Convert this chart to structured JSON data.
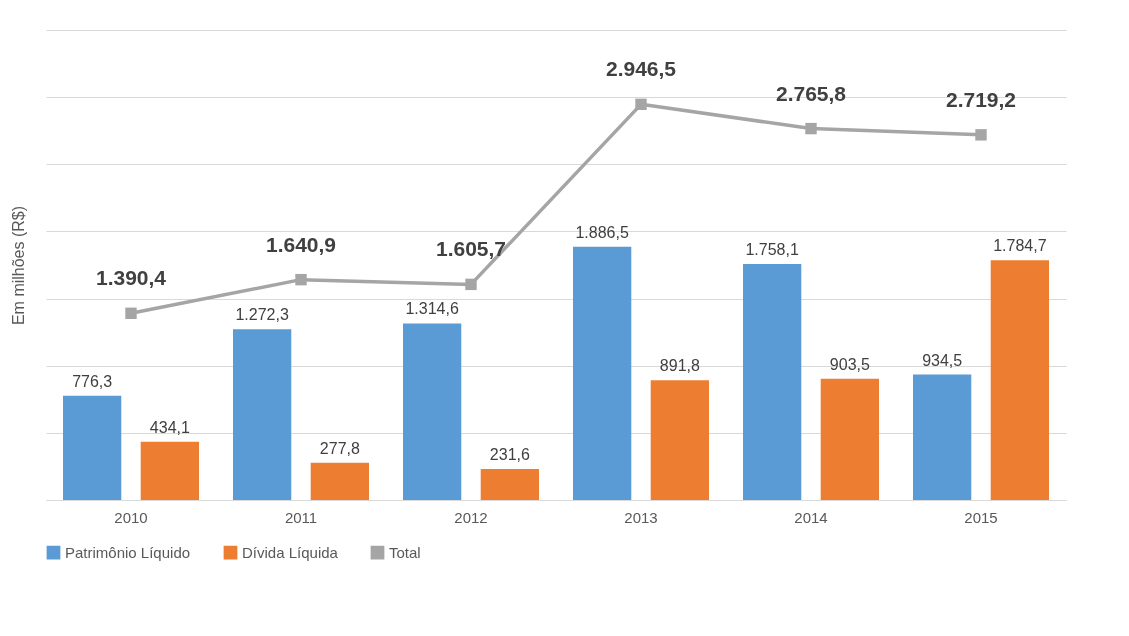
{
  "chart_data": {
    "type": "bar",
    "ylabel": "Em milhões (R$)",
    "categories": [
      "2010",
      "2011",
      "2012",
      "2013",
      "2014",
      "2015"
    ],
    "series": [
      {
        "name": "Patrimônio Líquido",
        "color": "#5b9bd5",
        "values": [
          776.3,
          1272.3,
          1314.6,
          1886.5,
          1758.1,
          934.5
        ],
        "value_labels": [
          "776,3",
          "1.272,3",
          "1.314,6",
          "1.886,5",
          "1.758,1",
          "934,5"
        ]
      },
      {
        "name": "Dívida Líquida",
        "color": "#ed7d31",
        "values": [
          434.1,
          277.8,
          231.6,
          891.8,
          903.5,
          1784.7
        ],
        "value_labels": [
          "434,1",
          "277,8",
          "231,6",
          "891,8",
          "903,5",
          "1.784,7"
        ]
      },
      {
        "name": "Total",
        "type": "line",
        "color": "#a5a5a5",
        "marker": "square",
        "values": [
          1390.4,
          1640.9,
          1605.7,
          2946.5,
          2765.8,
          2719.2
        ],
        "value_labels": [
          "1.390,4",
          "1.640,9",
          "1.605,7",
          "2.946,5",
          "2.765,8",
          "2.719,2"
        ]
      }
    ],
    "ylim": [
      0,
      3500
    ],
    "yticks": [
      {
        "value": 0,
        "label": null
      },
      {
        "value": 500,
        "label": null
      },
      {
        "value": 1000,
        "label": null
      },
      {
        "value": 1500,
        "label": null
      },
      {
        "value": 2000,
        "label": null
      },
      {
        "value": 2500,
        "label": null
      },
      {
        "value": 3000,
        "label": null
      },
      {
        "value": 3500,
        "label": null
      }
    ],
    "tick_labels": "x",
    "grid": "y",
    "legend": "bottom"
  }
}
